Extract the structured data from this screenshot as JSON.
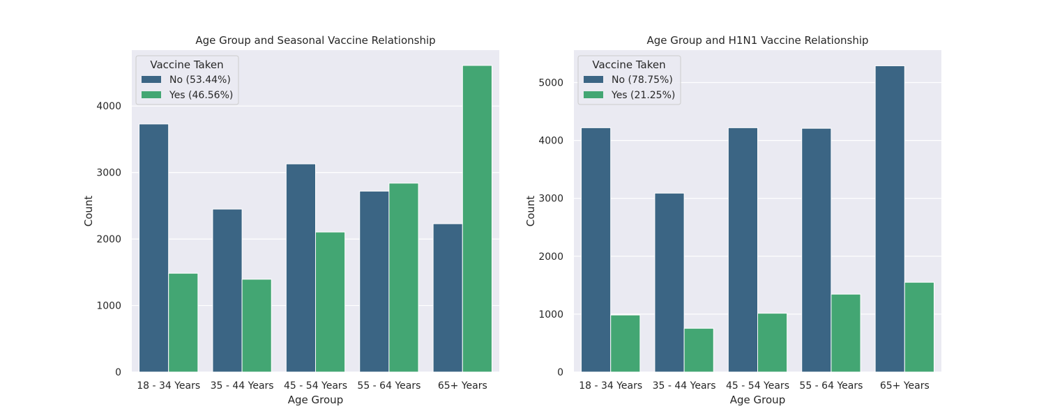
{
  "chart_data": [
    {
      "type": "bar",
      "title": "Age Group and Seasonal Vaccine Relationship",
      "xlabel": "Age Group",
      "ylabel": "Count",
      "categories": [
        "18 - 34 Years",
        "35 - 44 Years",
        "45 - 54 Years",
        "55 - 64 Years",
        "65+ Years"
      ],
      "series": [
        {
          "name": "No (53.44%)",
          "color": "#3b6584",
          "values": [
            3730,
            2450,
            3130,
            2720,
            2230
          ]
        },
        {
          "name": "Yes (46.56%)",
          "color": "#43a673",
          "values": [
            1485,
            1395,
            2105,
            2840,
            4610
          ]
        }
      ],
      "ylim": [
        0,
        4840
      ],
      "yticks": [
        0,
        1000,
        2000,
        3000,
        4000
      ],
      "grid": true,
      "legend": {
        "title": "Vaccine Taken",
        "position": "top-left"
      }
    },
    {
      "type": "bar",
      "title": "Age Group and H1N1 Vaccine Relationship",
      "xlabel": "Age Group",
      "ylabel": "Count",
      "categories": [
        "18 - 34 Years",
        "35 - 44 Years",
        "45 - 54 Years",
        "55 - 64 Years",
        "65+ Years"
      ],
      "series": [
        {
          "name": "No (78.75%)",
          "color": "#3b6584",
          "values": [
            4220,
            3090,
            4220,
            4210,
            5290
          ]
        },
        {
          "name": "Yes (21.25%)",
          "color": "#43a673",
          "values": [
            985,
            755,
            1015,
            1345,
            1550
          ]
        }
      ],
      "ylim": [
        0,
        5560
      ],
      "yticks": [
        0,
        1000,
        2000,
        3000,
        4000,
        5000
      ],
      "grid": true,
      "legend": {
        "title": "Vaccine Taken",
        "position": "top-left"
      }
    }
  ]
}
